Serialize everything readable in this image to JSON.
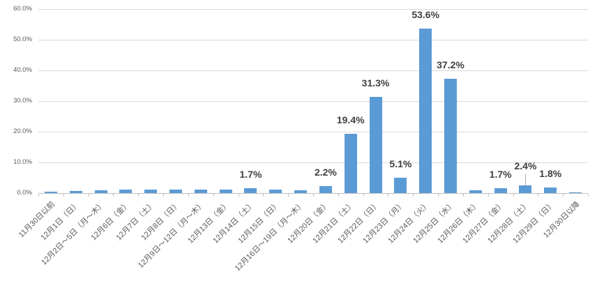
{
  "chart_data": {
    "type": "bar",
    "title": "",
    "xlabel": "",
    "ylabel": "",
    "legend_visible": false,
    "grid": true,
    "ylim": [
      0,
      60
    ],
    "yticks": [
      0,
      10,
      20,
      30,
      40,
      50,
      60
    ],
    "ytick_labels": [
      "0.0%",
      "10.0%",
      "20.0%",
      "30.0%",
      "40.0%",
      "50.0%",
      "60.0%"
    ],
    "categories": [
      "11月30日以前",
      "12月1日（日）",
      "12月2日〜5日（月〜木）",
      "12月6日（金）",
      "12月7日（土）",
      "12月8日（日）",
      "12月9日〜12日（月〜木）",
      "12月13日（金）",
      "12月14日（土）",
      "12月15日（日）",
      "12月16日〜19日（月〜木）",
      "12月20日（金）",
      "12月21日（土）",
      "12月22日（日）",
      "12月23日（月）",
      "12月24日（火）",
      "12月25日（水）",
      "12月26日（木）",
      "12月27日（金）",
      "12月28日（土）",
      "12月29日（日）",
      "12月30日以降"
    ],
    "values": [
      0.5,
      0.7,
      0.9,
      1.1,
      1.1,
      1.2,
      1.1,
      1.2,
      1.7,
      1.2,
      1.0,
      2.2,
      19.4,
      31.3,
      5.1,
      53.6,
      37.2,
      0.8,
      1.7,
      2.4,
      1.8,
      0.2
    ],
    "data_labels": [
      "",
      "",
      "",
      "",
      "",
      "",
      "",
      "",
      "1.7%",
      "",
      "",
      "2.2%",
      "19.4%",
      "31.3%",
      "5.1%",
      "53.6%",
      "37.2%",
      "",
      "1.7%",
      "2.4%",
      "1.8%",
      ""
    ],
    "leader_lines": [
      false,
      false,
      false,
      false,
      false,
      false,
      false,
      false,
      false,
      false,
      false,
      false,
      false,
      false,
      false,
      false,
      false,
      false,
      false,
      true,
      false,
      false
    ],
    "colors": {
      "bar": "#5b9bd5",
      "gridline": "#d9d9d9",
      "axis": "#bfbfbf",
      "data_label": "#404040",
      "tick_label": "#595959",
      "leader": "#a6a6a6",
      "background": "#ffffff"
    }
  }
}
